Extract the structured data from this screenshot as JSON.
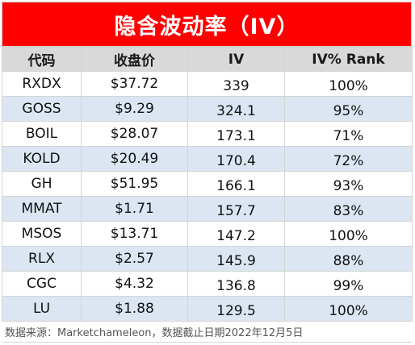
{
  "title": "隐含波动率（IV）",
  "headers": {
    "code": "代码",
    "price": "收盘价",
    "iv": "IV",
    "rank": "IV% Rank"
  },
  "rows": [
    {
      "code": "RXDX",
      "price": "$37.72",
      "iv": "339",
      "rank": "100%"
    },
    {
      "code": "GOSS",
      "price": "$9.29",
      "iv": "324.1",
      "rank": "95%"
    },
    {
      "code": "BOIL",
      "price": "$28.07",
      "iv": "173.1",
      "rank": "71%"
    },
    {
      "code": "KOLD",
      "price": "$20.49",
      "iv": "170.4",
      "rank": "72%"
    },
    {
      "code": "GH",
      "price": "$51.95",
      "iv": "166.1",
      "rank": "93%"
    },
    {
      "code": "MMAT",
      "price": "$1.71",
      "iv": "157.7",
      "rank": "83%"
    },
    {
      "code": "MSOS",
      "price": "$13.71",
      "iv": "147.2",
      "rank": "100%"
    },
    {
      "code": "RLX",
      "price": "$2.57",
      "iv": "145.9",
      "rank": "88%"
    },
    {
      "code": "CGC",
      "price": "$4.32",
      "iv": "136.8",
      "rank": "99%"
    },
    {
      "code": "LU",
      "price": "$1.88",
      "iv": "129.5",
      "rank": "100%"
    }
  ],
  "footnote": "数据来源：Marketchameleon，数据截止日期2022年12月5日",
  "colors": {
    "title_bg": "#ff0000",
    "header_bg": "#d9d9d9",
    "shaded_row_bg": "#dbe6f2"
  }
}
